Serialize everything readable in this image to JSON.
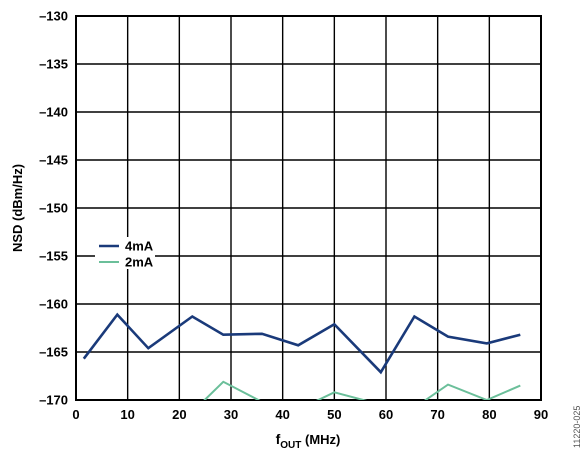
{
  "chart_data": {
    "type": "line",
    "xlabel_main": "f",
    "xlabel_sub": "OUT",
    "xlabel_unit": " (MHz)",
    "ylabel": "NSD (dBm/Hz)",
    "xlim": [
      0,
      90
    ],
    "ylim": [
      -170,
      -130
    ],
    "x_ticks": [
      0,
      10,
      20,
      30,
      40,
      50,
      60,
      70,
      80,
      90
    ],
    "y_ticks": [
      -130,
      -135,
      -140,
      -145,
      -150,
      -155,
      -160,
      -165,
      -170
    ],
    "x_tick_labels": [
      "0",
      "10",
      "20",
      "30",
      "40",
      "50",
      "60",
      "70",
      "80",
      "90"
    ],
    "y_tick_labels": [
      "–130",
      "–135",
      "–140",
      "–145",
      "–150",
      "–155",
      "–160",
      "–165",
      "–170"
    ],
    "grid": true,
    "legend_position": "left",
    "figure_id": "11220-025",
    "series": [
      {
        "name": "4mA",
        "color": "#1a3a7a",
        "x": [
          1.5,
          8,
          14,
          22.5,
          28.5,
          36,
          43,
          50,
          59,
          65.5,
          72,
          79.5,
          86
        ],
        "y": [
          -165.7,
          -161.1,
          -164.6,
          -161.3,
          -163.2,
          -163.1,
          -164.3,
          -162.1,
          -167.1,
          -161.3,
          -163.4,
          -164.1,
          -163.2
        ]
      },
      {
        "name": "2mA",
        "color": "#6bbf9a",
        "x": [
          23,
          28.5,
          36,
          43,
          50,
          57,
          65,
          72,
          79.5,
          86
        ],
        "y": [
          -171,
          -168.1,
          -170.2,
          -171,
          -169.2,
          -170.2,
          -171,
          -168.4,
          -170,
          -168.5
        ]
      }
    ]
  }
}
